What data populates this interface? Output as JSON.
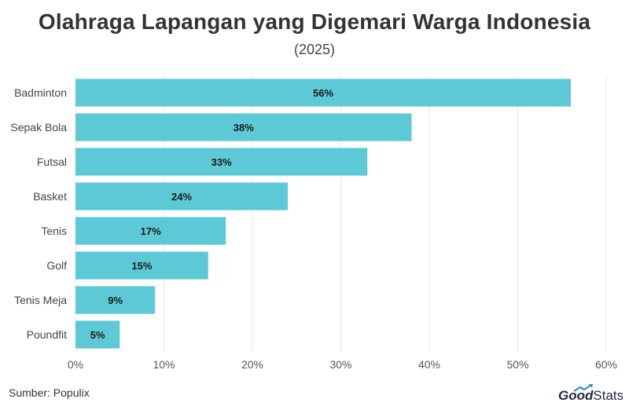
{
  "chart_data": {
    "type": "bar",
    "orientation": "horizontal",
    "title": "Olahraga Lapangan yang Digemari Warga Indonesia",
    "subtitle": "(2025)",
    "categories": [
      "Badminton",
      "Sepak Bola",
      "Futsal",
      "Basket",
      "Tenis",
      "Golf",
      "Tenis Meja",
      "Poundfit"
    ],
    "values": [
      56,
      38,
      33,
      24,
      17,
      15,
      9,
      5
    ],
    "data_labels": [
      "56%",
      "38%",
      "33%",
      "24%",
      "17%",
      "15%",
      "9%",
      "5%"
    ],
    "x_ticks": [
      "0%",
      "10%",
      "20%",
      "30%",
      "40%",
      "50%",
      "60%"
    ],
    "xlim": [
      0,
      60
    ],
    "grid": true,
    "bar_color": "#5ec9d6"
  },
  "footer": {
    "source": "Sumber: Populix",
    "logo_text_bold": "Good",
    "logo_text_regular": "Stats"
  }
}
